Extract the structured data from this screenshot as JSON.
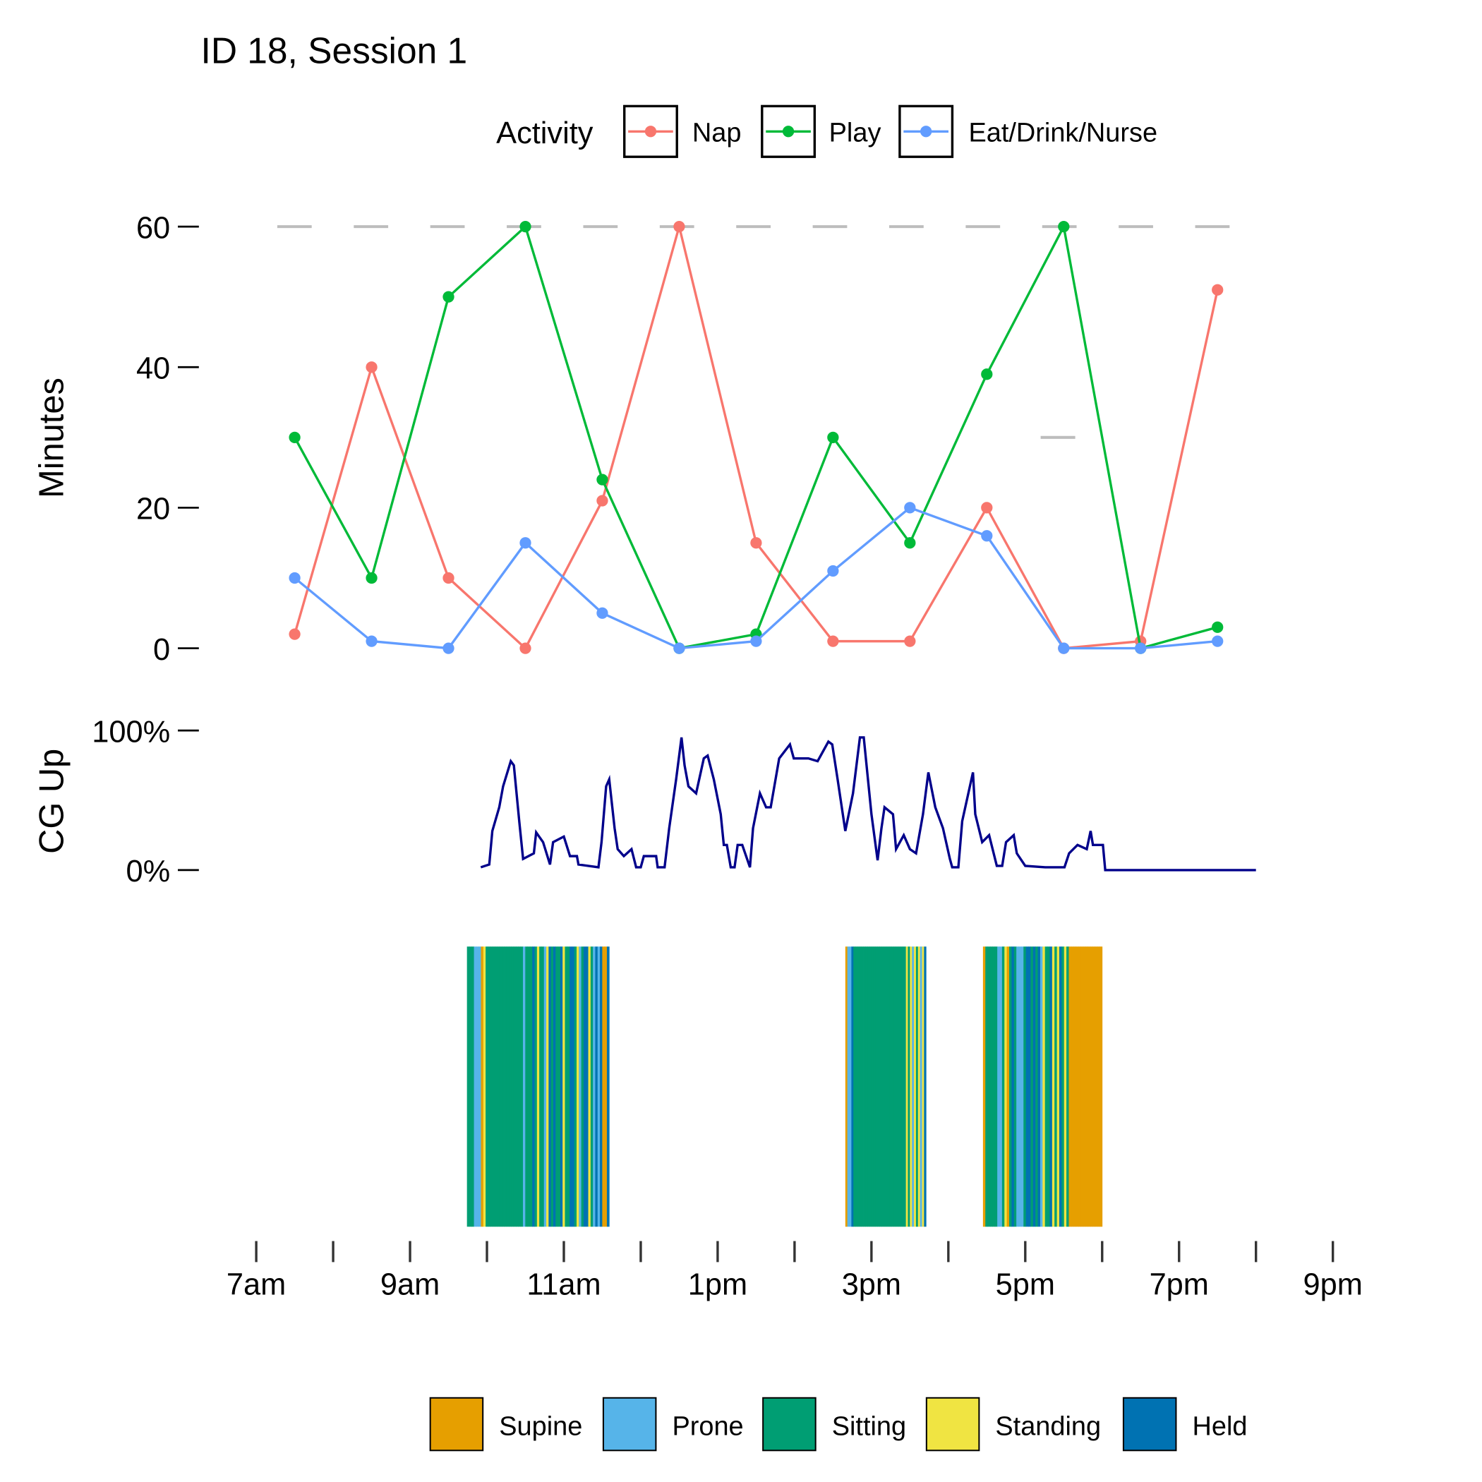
{
  "chart_data": [
    {
      "type": "line",
      "title": "ID 18, Session 1",
      "ylabel": "Minutes",
      "xlabel": "",
      "ylim": [
        0,
        60
      ],
      "yticks": [
        "0",
        "20",
        "40",
        "60"
      ],
      "reference_lines": [
        {
          "y": 60,
          "style": "dashed",
          "color": "#bdbdbd"
        },
        {
          "y": 30,
          "x_range": [
            17.2,
            17.65
          ],
          "color": "#bdbdbd"
        }
      ],
      "legend": {
        "title": "Activity",
        "placement": "top",
        "entries": [
          "Nap",
          "Play",
          "Eat/Drink/Nurse"
        ]
      },
      "x": [
        7.5,
        8.5,
        9.5,
        10.5,
        11.5,
        12.5,
        13.5,
        14.5,
        15.5,
        16.5,
        17.5,
        18.5,
        19.5
      ],
      "series": [
        {
          "name": "Nap",
          "color": "#f8766d",
          "values": [
            2,
            40,
            10,
            0,
            21,
            60,
            15,
            1,
            1,
            20,
            0,
            1,
            51
          ]
        },
        {
          "name": "Play",
          "color": "#00ba38",
          "values": [
            30,
            10,
            50,
            60,
            24,
            0,
            2,
            30,
            15,
            39,
            60,
            0,
            3
          ]
        },
        {
          "name": "Eat/Drink/Nurse",
          "color": "#619cff",
          "values": [
            10,
            1,
            0,
            15,
            5,
            0,
            1,
            11,
            20,
            16,
            0,
            0,
            1
          ]
        }
      ]
    },
    {
      "type": "line",
      "ylabel": "CG Up",
      "ylim": [
        0,
        100
      ],
      "yticks": [
        "0%",
        "100%"
      ],
      "color": "#00008b",
      "points": [
        [
          9.92,
          2
        ],
        [
          10.03,
          4
        ],
        [
          10.07,
          28
        ],
        [
          10.16,
          45
        ],
        [
          10.21,
          60
        ],
        [
          10.31,
          78
        ],
        [
          10.35,
          75
        ],
        [
          10.42,
          35
        ],
        [
          10.47,
          8
        ],
        [
          10.61,
          12
        ],
        [
          10.64,
          27
        ],
        [
          10.73,
          20
        ],
        [
          10.82,
          4
        ],
        [
          10.86,
          20
        ],
        [
          11.0,
          24
        ],
        [
          11.08,
          10
        ],
        [
          11.17,
          10
        ],
        [
          11.19,
          4
        ],
        [
          11.45,
          2
        ],
        [
          11.49,
          20
        ],
        [
          11.55,
          60
        ],
        [
          11.59,
          65
        ],
        [
          11.66,
          30
        ],
        [
          11.7,
          15
        ],
        [
          11.78,
          10
        ],
        [
          11.88,
          15
        ],
        [
          11.94,
          2
        ],
        [
          12.0,
          2
        ],
        [
          12.04,
          10
        ],
        [
          12.2,
          10
        ],
        [
          12.22,
          2
        ],
        [
          12.31,
          2
        ],
        [
          12.37,
          30
        ],
        [
          12.46,
          65
        ],
        [
          12.53,
          95
        ],
        [
          12.57,
          75
        ],
        [
          12.62,
          60
        ],
        [
          12.72,
          55
        ],
        [
          12.82,
          80
        ],
        [
          12.87,
          82
        ],
        [
          12.95,
          65
        ],
        [
          13.04,
          40
        ],
        [
          13.08,
          18
        ],
        [
          13.12,
          18
        ],
        [
          13.17,
          2
        ],
        [
          13.22,
          2
        ],
        [
          13.26,
          18
        ],
        [
          13.32,
          18
        ],
        [
          13.42,
          2
        ],
        [
          13.46,
          30
        ],
        [
          13.55,
          55
        ],
        [
          13.63,
          45
        ],
        [
          13.69,
          45
        ],
        [
          13.8,
          80
        ],
        [
          13.94,
          90
        ],
        [
          13.99,
          80
        ],
        [
          14.18,
          80
        ],
        [
          14.3,
          78
        ],
        [
          14.44,
          92
        ],
        [
          14.49,
          90
        ],
        [
          14.56,
          65
        ],
        [
          14.66,
          28
        ],
        [
          14.76,
          55
        ],
        [
          14.85,
          95
        ],
        [
          14.9,
          95
        ],
        [
          15.0,
          40
        ],
        [
          15.08,
          7
        ],
        [
          15.13,
          30
        ],
        [
          15.17,
          45
        ],
        [
          15.28,
          40
        ],
        [
          15.32,
          15
        ],
        [
          15.42,
          25
        ],
        [
          15.5,
          15
        ],
        [
          15.58,
          12
        ],
        [
          15.67,
          40
        ],
        [
          15.74,
          70
        ],
        [
          15.83,
          45
        ],
        [
          15.93,
          30
        ],
        [
          16.02,
          8
        ],
        [
          16.05,
          2
        ],
        [
          16.13,
          2
        ],
        [
          16.18,
          35
        ],
        [
          16.32,
          70
        ],
        [
          16.35,
          40
        ],
        [
          16.44,
          20
        ],
        [
          16.53,
          25
        ],
        [
          16.63,
          3
        ],
        [
          16.7,
          3
        ],
        [
          16.75,
          20
        ],
        [
          16.85,
          25
        ],
        [
          16.89,
          12
        ],
        [
          17.0,
          3
        ],
        [
          17.26,
          2
        ],
        [
          17.51,
          2
        ],
        [
          17.57,
          12
        ],
        [
          17.68,
          18
        ],
        [
          17.8,
          15
        ],
        [
          17.85,
          28
        ],
        [
          17.88,
          18
        ],
        [
          18.01,
          18
        ],
        [
          18.04,
          0
        ],
        [
          20.0,
          0
        ]
      ]
    },
    {
      "type": "bar",
      "subtype": "posture-timeline",
      "xlabel": "",
      "xticks": [
        "7am",
        "9am",
        "11am",
        "1pm",
        "3pm",
        "5pm",
        "7pm",
        "9pm"
      ],
      "xlim": [
        7,
        21
      ],
      "legend": {
        "placement": "bottom",
        "entries": [
          {
            "code": "U",
            "label": "Supine",
            "color": "#e69f00"
          },
          {
            "code": "P",
            "label": "Prone",
            "color": "#56b4e9"
          },
          {
            "code": "S",
            "label": "Sitting",
            "color": "#009e73"
          },
          {
            "code": "T",
            "label": "Standing",
            "color": "#f0e442"
          },
          {
            "code": "H",
            "label": "Held",
            "color": "#0072b2"
          }
        ]
      },
      "blocks": [
        {
          "start": 9.74,
          "end": 11.59,
          "sequence": "SSSPPPUTSSSSSSSSSSSSSSSSPSSSHSTSSPTHSHSSHTSSHHSTPSHHTSPHPHUUH"
        },
        {
          "start": 14.66,
          "end": 15.71,
          "sequence": "UPPHSSSSSSSSSSSSSSSSSSSSSSSSSSTSTPTSTPTH"
        },
        {
          "start": 16.45,
          "end": 18.0,
          "sequence": "USSSSSPPSTUSHSPPPSHHSHSHPTSSHTSTHSTSUUUUUUUUUUUUUU"
        }
      ]
    }
  ]
}
